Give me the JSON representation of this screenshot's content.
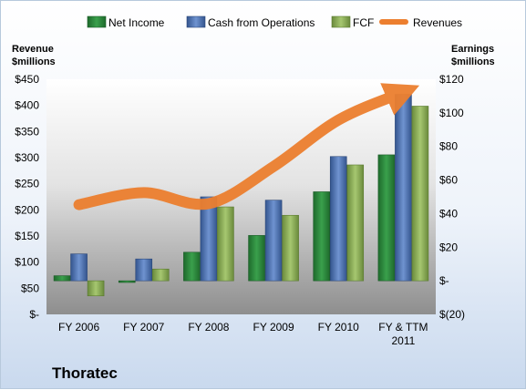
{
  "chart_data": {
    "type": "bar",
    "title": "",
    "company": "Thoratec",
    "categories": [
      "FY 2006",
      "FY 2007",
      "FY 2008",
      "FY 2009",
      "FY 2010",
      "FY & TTM 2011"
    ],
    "left_axis": {
      "label_line1": "Revenue",
      "label_line2": "$millions",
      "ylim": [
        0,
        450
      ],
      "ticks": [
        0,
        50,
        100,
        150,
        200,
        250,
        300,
        350,
        400,
        450
      ],
      "tick_labels": [
        "$-",
        "$50",
        "$100",
        "$150",
        "$200",
        "$250",
        "$300",
        "$350",
        "$400",
        "$450"
      ]
    },
    "right_axis": {
      "label_line1": "Earnings",
      "label_line2": "$millions",
      "ylim": [
        -20,
        120
      ],
      "ticks": [
        -20,
        0,
        20,
        40,
        60,
        80,
        100,
        120
      ],
      "tick_labels": [
        "$(20)",
        "$-",
        "$20",
        "$40",
        "$60",
        "$80",
        "$100",
        "$120"
      ]
    },
    "series": [
      {
        "name": "Net Income",
        "type": "bar",
        "axis": "right",
        "color": "#2e8b3e",
        "values": [
          3,
          -1,
          17,
          27,
          53,
          75
        ]
      },
      {
        "name": "Cash from Operations",
        "type": "bar",
        "axis": "right",
        "color": "#4f74b4",
        "values": [
          16,
          13,
          50,
          48,
          74,
          111
        ]
      },
      {
        "name": "FCF",
        "type": "bar",
        "axis": "right",
        "color": "#8caf5a",
        "values": [
          -9,
          7,
          44,
          39,
          69,
          104
        ]
      },
      {
        "name": "Revenues",
        "type": "line",
        "axis": "left",
        "color": "#ec7f2f",
        "values": [
          210,
          233,
          212,
          283,
          372,
          425
        ]
      }
    ],
    "legend_position": "top",
    "grid": false
  }
}
